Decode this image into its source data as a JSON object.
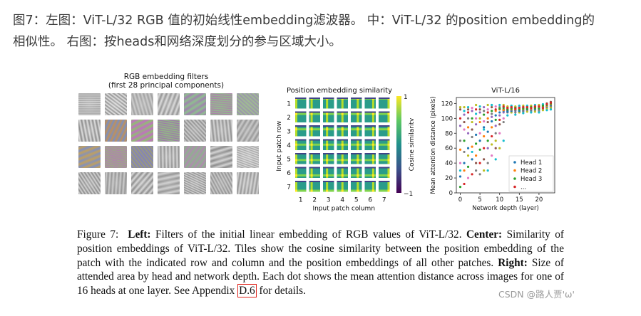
{
  "top_caption": {
    "line1": "图7：左图：ViT-L/32 RGB 值的初始线性embedding滤波器。 中：ViT-L/32 的position embedding的",
    "line2": "相似性。 右图：按heads和网络深度划分的参与区域大小。"
  },
  "left_panel": {
    "title_line1": "RGB embedding filters",
    "title_line2": "(first 28 principal components)"
  },
  "chart_data": [
    {
      "type": "heatmap",
      "title": "Position embedding similarity",
      "xlabel": "Input patch column",
      "ylabel": "Input patch row",
      "colorbar_label": "Cosine similarity",
      "colorbar_ticks": [
        "1",
        "−1"
      ],
      "x_ticks": [
        "1",
        "2",
        "3",
        "4",
        "5",
        "6",
        "7"
      ],
      "y_ticks": [
        "1",
        "2",
        "3",
        "4",
        "5",
        "6",
        "7"
      ],
      "grid_size": [
        7,
        7
      ],
      "vmin": -1,
      "vmax": 1
    },
    {
      "type": "scatter",
      "title": "ViT-L/16",
      "xlabel": "Network depth (layer)",
      "ylabel": "Mean attention distance (pixels)",
      "xlim": [
        -1,
        24
      ],
      "ylim": [
        0,
        128
      ],
      "x_ticks": [
        0,
        5,
        10,
        15,
        20
      ],
      "y_ticks": [
        0,
        20,
        40,
        60,
        80,
        100,
        120
      ],
      "legend_position": "bottom-right",
      "series": [
        {
          "name": "Head 1",
          "color": "#1f77b4",
          "values": [
            [
              0,
              22
            ],
            [
              1,
              40
            ],
            [
              2,
              60
            ],
            [
              3,
              45
            ],
            [
              4,
              78
            ],
            [
              5,
              70
            ],
            [
              6,
              88
            ],
            [
              7,
              82
            ],
            [
              8,
              96
            ],
            [
              9,
              104
            ],
            [
              10,
              108
            ],
            [
              11,
              110
            ],
            [
              12,
              109
            ],
            [
              13,
              110
            ],
            [
              14,
              111
            ],
            [
              15,
              110
            ],
            [
              16,
              111
            ],
            [
              17,
              112
            ],
            [
              18,
              112
            ],
            [
              19,
              113
            ],
            [
              20,
              114
            ],
            [
              21,
              115
            ],
            [
              22,
              116
            ],
            [
              23,
              118
            ]
          ]
        },
        {
          "name": "Head 2",
          "color": "#ff7f0e",
          "values": [
            [
              0,
              58
            ],
            [
              1,
              30
            ],
            [
              2,
              88
            ],
            [
              3,
              62
            ],
            [
              4,
              50
            ],
            [
              5,
              95
            ],
            [
              6,
              76
            ],
            [
              7,
              100
            ],
            [
              8,
              88
            ],
            [
              9,
              110
            ],
            [
              10,
              112
            ],
            [
              11,
              111
            ],
            [
              12,
              113
            ],
            [
              13,
              112
            ],
            [
              14,
              112
            ],
            [
              15,
              113
            ],
            [
              16,
              112
            ],
            [
              17,
              114
            ],
            [
              18,
              113
            ],
            [
              19,
              114
            ],
            [
              20,
              115
            ],
            [
              21,
              116
            ],
            [
              22,
              117
            ],
            [
              23,
              119
            ]
          ]
        },
        {
          "name": "Head 3",
          "color": "#2ca02c",
          "values": [
            [
              0,
              8
            ],
            [
              1,
              70
            ],
            [
              2,
              35
            ],
            [
              3,
              100
            ],
            [
              4,
              66
            ],
            [
              5,
              58
            ],
            [
              6,
              105
            ],
            [
              7,
              70
            ],
            [
              8,
              110
            ],
            [
              9,
              98
            ],
            [
              10,
              113
            ],
            [
              11,
              114
            ],
            [
              12,
              112
            ],
            [
              13,
              113
            ],
            [
              14,
              114
            ],
            [
              15,
              112
            ],
            [
              16,
              113
            ],
            [
              17,
              113
            ],
            [
              18,
              115
            ],
            [
              19,
              114
            ],
            [
              20,
              113
            ],
            [
              21,
              117
            ],
            [
              22,
              118
            ],
            [
              23,
              120
            ]
          ]
        },
        {
          "name": "...",
          "color": "#d62728",
          "values": [
            [
              0,
              100
            ],
            [
              1,
              12
            ],
            [
              2,
              108
            ],
            [
              3,
              25
            ],
            [
              4,
              112
            ],
            [
              5,
              40
            ],
            [
              6,
              60
            ],
            [
              7,
              108
            ],
            [
              8,
              76
            ],
            [
              9,
              112
            ],
            [
              10,
              98
            ],
            [
              11,
              116
            ],
            [
              12,
              114
            ],
            [
              13,
              115
            ],
            [
              14,
              113
            ],
            [
              15,
              114
            ],
            [
              16,
              115
            ],
            [
              17,
              115
            ],
            [
              18,
              114
            ],
            [
              19,
              116
            ],
            [
              20,
              116
            ],
            [
              21,
              114
            ],
            [
              22,
              119
            ],
            [
              23,
              121
            ]
          ]
        }
      ],
      "extra_points": [
        {
          "color": "#9467bd",
          "values": [
            [
              0,
              90
            ],
            [
              1,
              105
            ],
            [
              2,
              80
            ],
            [
              3,
              110
            ],
            [
              4,
              92
            ],
            [
              5,
              108
            ],
            [
              6,
              115
            ],
            [
              7,
              60
            ],
            [
              8,
              102
            ],
            [
              9,
              90
            ],
            [
              10,
              104
            ],
            [
              11,
              108
            ],
            [
              12,
              110
            ],
            [
              13,
              111
            ],
            [
              14,
              110
            ],
            [
              15,
              111
            ],
            [
              16,
              110
            ],
            [
              17,
              111
            ],
            [
              18,
              112
            ],
            [
              19,
              112
            ],
            [
              20,
              112
            ],
            [
              21,
              113
            ],
            [
              22,
              115
            ],
            [
              23,
              117
            ]
          ]
        },
        {
          "color": "#8c564b",
          "values": [
            [
              0,
              112
            ],
            [
              1,
              95
            ],
            [
              2,
              112
            ],
            [
              3,
              85
            ],
            [
              4,
              40
            ],
            [
              5,
              112
            ],
            [
              6,
              45
            ],
            [
              7,
              95
            ],
            [
              8,
              115
            ],
            [
              9,
              60
            ],
            [
              10,
              92
            ],
            [
              11,
              112
            ],
            [
              12,
              111
            ],
            [
              13,
              114
            ],
            [
              14,
              115
            ],
            [
              15,
              115
            ],
            [
              16,
              114
            ],
            [
              17,
              116
            ],
            [
              18,
              116
            ],
            [
              19,
              115
            ],
            [
              20,
              117
            ],
            [
              21,
              118
            ],
            [
              22,
              120
            ],
            [
              23,
              122
            ]
          ]
        },
        {
          "color": "#e377c2",
          "values": [
            [
              0,
              40
            ],
            [
              1,
              85
            ],
            [
              2,
              20
            ],
            [
              3,
              114
            ],
            [
              4,
              100
            ],
            [
              5,
              80
            ],
            [
              6,
              96
            ],
            [
              7,
              112
            ],
            [
              8,
              50
            ],
            [
              9,
              116
            ],
            [
              10,
              80
            ],
            [
              11,
              100
            ],
            [
              12,
              115
            ],
            [
              13,
              109
            ],
            [
              14,
              112
            ],
            [
              15,
              116
            ],
            [
              16,
              116
            ],
            [
              17,
              110
            ],
            [
              18,
              111
            ],
            [
              19,
              117
            ],
            [
              20,
              111
            ],
            [
              21,
              116
            ],
            [
              22,
              116
            ],
            [
              23,
              115
            ]
          ]
        },
        {
          "color": "#7f7f7f",
          "values": [
            [
              0,
              70
            ],
            [
              1,
              55
            ],
            [
              2,
              100
            ],
            [
              3,
              75
            ],
            [
              4,
              30
            ],
            [
              5,
              25
            ],
            [
              6,
              110
            ],
            [
              7,
              40
            ],
            [
              8,
              106
            ],
            [
              9,
              80
            ],
            [
              10,
              115
            ],
            [
              11,
              95
            ],
            [
              12,
              108
            ],
            [
              13,
              116
            ],
            [
              14,
              108
            ],
            [
              15,
              109
            ],
            [
              16,
              109
            ],
            [
              17,
              113
            ],
            [
              18,
              110
            ],
            [
              19,
              111
            ],
            [
              20,
              110
            ],
            [
              21,
              112
            ],
            [
              22,
              114
            ],
            [
              23,
              116
            ]
          ]
        },
        {
          "color": "#bcbd22",
          "values": [
            [
              0,
              115
            ],
            [
              1,
              115
            ],
            [
              2,
              50
            ],
            [
              3,
              95
            ],
            [
              4,
              118
            ],
            [
              5,
              100
            ],
            [
              6,
              30
            ],
            [
              7,
              118
            ],
            [
              8,
              65
            ],
            [
              9,
              70
            ],
            [
              10,
              60
            ],
            [
              11,
              118
            ],
            [
              12,
              116
            ],
            [
              13,
              108
            ],
            [
              14,
              116
            ],
            [
              15,
              108
            ],
            [
              16,
              117
            ],
            [
              17,
              109
            ],
            [
              18,
              117
            ],
            [
              19,
              109
            ],
            [
              20,
              118
            ],
            [
              21,
              111
            ],
            [
              22,
              113
            ],
            [
              23,
              114
            ]
          ]
        },
        {
          "color": "#17becf",
          "values": [
            [
              0,
              30
            ],
            [
              1,
              110
            ],
            [
              2,
              115
            ],
            [
              3,
              55
            ],
            [
              4,
              106
            ],
            [
              5,
              116
            ],
            [
              6,
              85
            ],
            [
              7,
              30
            ],
            [
              8,
              118
            ],
            [
              9,
              45
            ],
            [
              10,
              118
            ],
            [
              11,
              70
            ],
            [
              12,
              104
            ],
            [
              13,
              117
            ],
            [
              14,
              105
            ],
            [
              15,
              117
            ],
            [
              16,
              107
            ],
            [
              17,
              117
            ],
            [
              18,
              108
            ],
            [
              19,
              118
            ],
            [
              20,
              108
            ],
            [
              21,
              119
            ],
            [
              22,
              111
            ],
            [
              23,
              112
            ]
          ]
        }
      ]
    }
  ],
  "figure_caption": {
    "prefix": "Figure 7:",
    "left_label": "Left:",
    "left_text": "Filters of the initial linear embedding of RGB values of ViT-L/32.",
    "center_label": "Center:",
    "center_text": "Similarity of position embeddings of ViT-L/32. Tiles show the cosine similarity between the position embedding of the patch with the indicated row and column and the position embeddings of all other patches.",
    "right_label": "Right:",
    "right_text": "Size of attended area by head and network depth. Each dot shows the mean attention distance across images for one of 16 heads at one layer. See Appendix",
    "appendix_ref": "D.6",
    "suffix": "for details."
  },
  "watermark": "CSDN @路人贾'ω'"
}
